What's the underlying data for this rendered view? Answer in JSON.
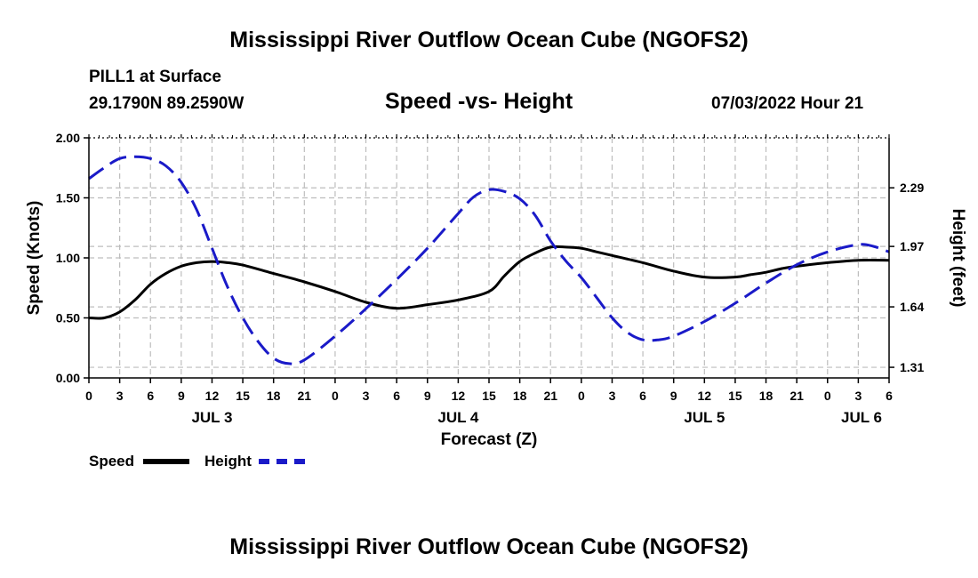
{
  "header": {
    "title": "Mississippi River Outflow Ocean Cube (NGOFS2)",
    "station": "PILL1 at Surface",
    "coords": "29.1790N  89.2590W",
    "subtitle": "Speed -vs- Height",
    "datetime": "07/03/2022 Hour 21"
  },
  "footer": {
    "title": "Mississippi River Outflow Ocean Cube (NGOFS2)"
  },
  "legend": {
    "speed_label": "Speed",
    "height_label": "Height"
  },
  "colors": {
    "speed": "#000000",
    "height": "#1a1ac8",
    "grid": "#bdbdbd"
  },
  "chart_data": {
    "type": "line",
    "title": "Speed -vs- Height",
    "xlabel": "Forecast (Z)",
    "ylabel": "Speed (Knots)",
    "y2label": "Height (feet)",
    "x_unit": "forecast hour",
    "xlim": [
      0,
      78
    ],
    "ylim": [
      0,
      2.0
    ],
    "y2lim": [
      1.252,
      2.563
    ],
    "x_ticks": [
      0,
      3,
      6,
      9,
      12,
      15,
      18,
      21,
      24,
      27,
      30,
      33,
      36,
      39,
      42,
      45,
      48,
      51,
      54,
      57,
      60,
      63,
      66,
      69,
      72,
      75,
      78
    ],
    "x_tick_labels": [
      "0",
      "3",
      "6",
      "9",
      "12",
      "15",
      "18",
      "21",
      "0",
      "3",
      "6",
      "9",
      "12",
      "15",
      "18",
      "21",
      "0",
      "3",
      "6",
      "9",
      "12",
      "15",
      "18",
      "21",
      "0",
      "3",
      "6"
    ],
    "day_labels": [
      {
        "x": 12,
        "label": "JUL 3"
      },
      {
        "x": 36,
        "label": "JUL 4"
      },
      {
        "x": 60,
        "label": "JUL 5"
      },
      {
        "x": 78,
        "label": "JUL 6"
      }
    ],
    "y_ticks": [
      0.0,
      0.5,
      1.0,
      1.5,
      2.0
    ],
    "y_tick_labels": [
      "0.00",
      "0.50",
      "1.00",
      "1.50",
      "2.00"
    ],
    "y2_ticks": [
      1.31,
      1.64,
      1.97,
      2.29
    ],
    "y2_tick_labels": [
      "1.31",
      "1.64",
      "1.97",
      "2.29"
    ],
    "series": [
      {
        "name": "Speed",
        "axis": "left",
        "style": "solid",
        "x": [
          0,
          1.5,
          3,
          4.5,
          6,
          7.5,
          9,
          10.5,
          12,
          13.5,
          15,
          18,
          21,
          24,
          27,
          30,
          33,
          36,
          39,
          40.5,
          42,
          43.5,
          45,
          46.5,
          48,
          49.5,
          51,
          54,
          57,
          60,
          63,
          64.5,
          66,
          67.5,
          69,
          72,
          75,
          78
        ],
        "values": [
          0.5,
          0.5,
          0.55,
          0.65,
          0.78,
          0.87,
          0.93,
          0.96,
          0.97,
          0.96,
          0.94,
          0.87,
          0.8,
          0.72,
          0.63,
          0.58,
          0.61,
          0.65,
          0.72,
          0.85,
          0.97,
          1.04,
          1.09,
          1.09,
          1.08,
          1.05,
          1.02,
          0.96,
          0.89,
          0.84,
          0.84,
          0.86,
          0.88,
          0.91,
          0.93,
          0.96,
          0.98,
          0.98
        ]
      },
      {
        "name": "Height",
        "axis": "right",
        "style": "dashed",
        "x": [
          0,
          1.5,
          3,
          4.5,
          6,
          7.5,
          9,
          10.5,
          12,
          13.5,
          15,
          16.5,
          18,
          19.5,
          21,
          24,
          27,
          30,
          33,
          36,
          37.5,
          39,
          40.5,
          42,
          43.5,
          45,
          46.5,
          48,
          49.5,
          51,
          52.5,
          54,
          55.5,
          57,
          60,
          63,
          66,
          69,
          72,
          75,
          76.5,
          78
        ],
        "values": [
          2.34,
          2.4,
          2.45,
          2.46,
          2.45,
          2.41,
          2.32,
          2.17,
          1.96,
          1.75,
          1.58,
          1.45,
          1.36,
          1.33,
          1.35,
          1.48,
          1.63,
          1.79,
          1.96,
          2.15,
          2.24,
          2.28,
          2.27,
          2.23,
          2.14,
          2.0,
          1.89,
          1.8,
          1.69,
          1.58,
          1.5,
          1.46,
          1.46,
          1.48,
          1.56,
          1.66,
          1.77,
          1.87,
          1.94,
          1.98,
          1.97,
          1.94
        ]
      }
    ]
  }
}
